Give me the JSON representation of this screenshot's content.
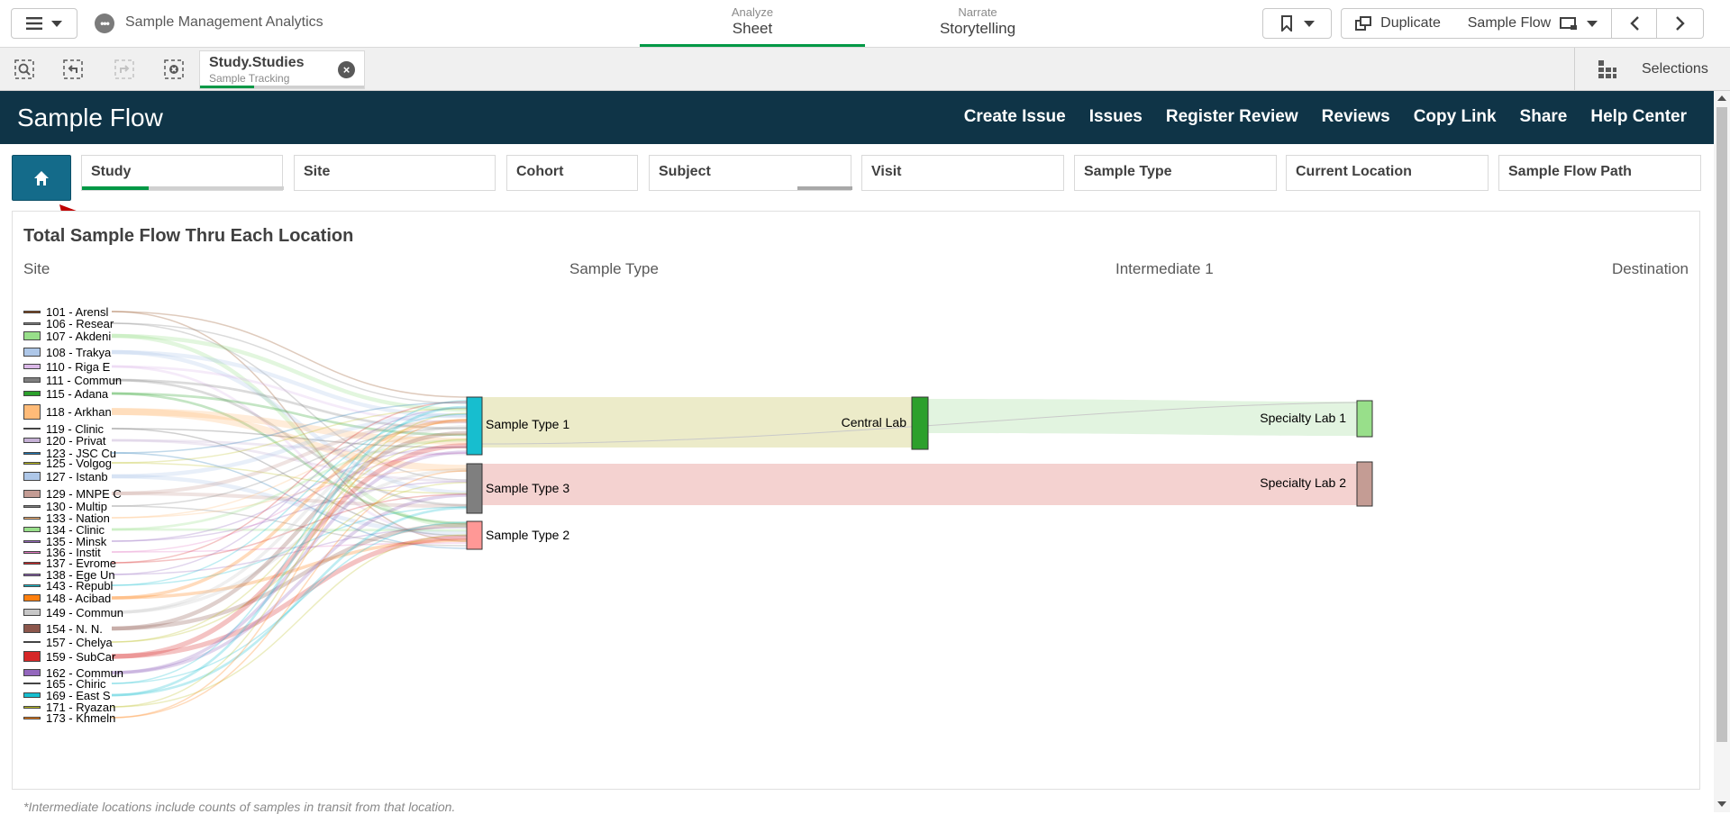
{
  "app": {
    "title": "Sample Management Analytics",
    "mode_tabs": [
      {
        "small": "Analyze",
        "big": "Sheet",
        "active": true
      },
      {
        "small": "Narrate",
        "big": "Storytelling",
        "active": false
      }
    ],
    "duplicate_label": "Duplicate",
    "sheet_selector_label": "Sample Flow"
  },
  "selection_bar": {
    "pill": {
      "title": "Study.Studies",
      "subtitle": "Sample Tracking",
      "close": "×"
    },
    "selections_label": "Selections"
  },
  "sheet": {
    "title": "Sample Flow",
    "links": [
      "Create Issue",
      "Issues",
      "Register Review",
      "Reviews",
      "Copy Link",
      "Share",
      "Help Center"
    ]
  },
  "filters": [
    {
      "label": "Study",
      "fill": 0.33
    },
    {
      "label": "Site",
      "fill": 0
    },
    {
      "label": "Cohort",
      "fill": 0
    },
    {
      "label": "Subject",
      "fill": 0.27
    },
    {
      "label": "Visit",
      "fill": 0
    },
    {
      "label": "Sample Type",
      "fill": 0
    },
    {
      "label": "Current Location",
      "fill": 0
    },
    {
      "label": "Sample Flow Path",
      "fill": 0
    }
  ],
  "chart": {
    "title": "Total Sample Flow Thru Each Location",
    "columns": [
      "Site",
      "Sample Type",
      "Intermediate 1",
      "Destination"
    ],
    "footnote": "*Intermediate locations include counts of samples in transit from that location."
  },
  "chart_data": {
    "type": "sankey",
    "title": "Total Sample Flow Thru Each Location",
    "column_headers": [
      "Site",
      "Sample Type",
      "Intermediate 1",
      "Destination"
    ],
    "sites": [
      {
        "name": "101 - Arensl",
        "color": "#8b4513"
      },
      {
        "name": "106 - Resear",
        "color": "#7f7f7f"
      },
      {
        "name": "107 - Akdeni",
        "color": "#98df8a"
      },
      {
        "name": "108 - Trakya",
        "color": "#aec7e8"
      },
      {
        "name": "110 - Riga E",
        "color": "#dbb8e8"
      },
      {
        "name": "111 - Commun",
        "color": "#7f7f7f"
      },
      {
        "name": "115 - Adana",
        "color": "#2ca02c"
      },
      {
        "name": "118 - Arkhan",
        "color": "#ffbb78"
      },
      {
        "name": "119 - Clinic",
        "color": "#555555"
      },
      {
        "name": "120 - Privat",
        "color": "#c5b0d5"
      },
      {
        "name": "123 - JSC Cu",
        "color": "#1f77b4"
      },
      {
        "name": "125 - Volgog",
        "color": "#bcbd22"
      },
      {
        "name": "127 - Istanb",
        "color": "#aec7e8"
      },
      {
        "name": "129 - MNPE C",
        "color": "#c49c94"
      },
      {
        "name": "130 - Multip",
        "color": "#7f7f7f"
      },
      {
        "name": "133 - Nation",
        "color": "#ffbb78"
      },
      {
        "name": "134 - Clinic",
        "color": "#98df8a"
      },
      {
        "name": "135 - Minsk",
        "color": "#9467bd"
      },
      {
        "name": "136 - Instit",
        "color": "#e377c2"
      },
      {
        "name": "137 - Evrome",
        "color": "#d62728"
      },
      {
        "name": "138 - Ege Un",
        "color": "#9467bd"
      },
      {
        "name": "143 - Republ",
        "color": "#17becf"
      },
      {
        "name": "148 - Acibad",
        "color": "#ff7f0e"
      },
      {
        "name": "149 - Commun",
        "color": "#c7c7c7"
      },
      {
        "name": "154 - N. N.",
        "color": "#8c564b"
      },
      {
        "name": "157 - Chelya",
        "color": "#bcbd22"
      },
      {
        "name": "159 - SubCar",
        "color": "#d62728"
      },
      {
        "name": "162 - Commun",
        "color": "#9467bd"
      },
      {
        "name": "165 - Chiric",
        "color": "#17becf"
      },
      {
        "name": "169 - East S",
        "color": "#17becf"
      },
      {
        "name": "171 - Ryazan",
        "color": "#bcbd22"
      },
      {
        "name": "173 - Khmeln",
        "color": "#ff7f0e"
      }
    ],
    "sample_types": [
      {
        "name": "Sample Type 1",
        "color": "#17becf"
      },
      {
        "name": "Sample Type 3",
        "color": "#7f7f7f"
      },
      {
        "name": "Sample Type 2",
        "color": "#ff9896"
      }
    ],
    "intermediate": [
      {
        "name": "Central Lab",
        "color": "#2ca02c"
      }
    ],
    "destinations": [
      {
        "name": "Specialty Lab 1",
        "color": "#98df8a"
      },
      {
        "name": "Specialty Lab 2",
        "color": "#c49c94"
      }
    ],
    "flows": [
      {
        "from": "Sample Type 1",
        "to": "Central Lab",
        "color": "#ecebc9"
      },
      {
        "from": "Central Lab",
        "to": "Specialty Lab 1",
        "color": "#e2f4e0"
      },
      {
        "from": "Sample Type 3",
        "to": "Specialty Lab 2",
        "color": "#f4d2d0"
      }
    ]
  }
}
